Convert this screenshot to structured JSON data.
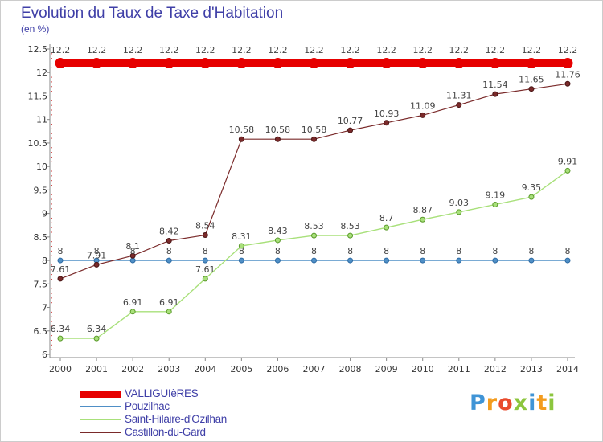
{
  "title": "Evolution du Taux de Taxe d'Habitation",
  "subtitle": "(en %)",
  "logo": {
    "text": "Proxiti",
    "letters": [
      "P",
      "r",
      "o",
      "x",
      "i",
      "t",
      "i"
    ],
    "colors": [
      "#3f94d6",
      "#f39c1e",
      "#e94b2d",
      "#8cc63e",
      "#3f94d6",
      "#f39c1e",
      "#8cc63e"
    ]
  },
  "chart_data": {
    "type": "line",
    "title": "Evolution du Taux de Taxe d'Habitation",
    "xlabel": "",
    "ylabel": "(en %)",
    "x": [
      "2000",
      "2001",
      "2002",
      "2003",
      "2004",
      "2005",
      "2006",
      "2007",
      "2008",
      "2009",
      "2010",
      "2011",
      "2012",
      "2013",
      "2014"
    ],
    "ylim": [
      6,
      12.5
    ],
    "yticks": [
      "6",
      "6.5",
      "7",
      "7.5",
      "8",
      "8.5",
      "9",
      "9.5",
      "10",
      "10.5",
      "11",
      "11.5",
      "12",
      "12.5"
    ],
    "grid": false,
    "legend_position": "bottom-left",
    "series": [
      {
        "name": "VALLIGUIèRES",
        "color": "#e60000",
        "values": [
          12.2,
          12.2,
          12.2,
          12.2,
          12.2,
          12.2,
          12.2,
          12.2,
          12.2,
          12.2,
          12.2,
          12.2,
          12.2,
          12.2,
          12.2
        ],
        "labels": [
          "12.2",
          "12.2",
          "12.2",
          "12.2",
          "12.2",
          "12.2",
          "12.2",
          "12.2",
          "12.2",
          "12.2",
          "12.2",
          "12.2",
          "12.2",
          "12.2",
          "12.2"
        ]
      },
      {
        "name": "Pouzilhac",
        "color": "#4f8fc6",
        "values": [
          8,
          8,
          8,
          8,
          8,
          8,
          8,
          8,
          8,
          8,
          8,
          8,
          8,
          8,
          8
        ],
        "labels": [
          "8",
          "8",
          "8",
          "8",
          "8",
          "8",
          "8",
          "8",
          "8",
          "8",
          "8",
          "8",
          "8",
          "8",
          "8"
        ]
      },
      {
        "name": "Saint-Hilaire-d'Ozilhan",
        "color": "#a8e07a",
        "values": [
          6.34,
          6.34,
          6.91,
          6.91,
          7.61,
          8.31,
          8.43,
          8.53,
          8.53,
          8.7,
          8.87,
          9.03,
          9.19,
          9.35,
          9.91
        ],
        "labels": [
          "6.34",
          "6.34",
          "6.91",
          "6.91",
          "7.61",
          "8.31",
          "8.43",
          "8.53",
          "8.53",
          "8.7",
          "8.87",
          "9.03",
          "9.19",
          "9.35",
          "9.91"
        ]
      },
      {
        "name": "Castillon-du-Gard",
        "color": "#7a2a2a",
        "values": [
          7.61,
          7.91,
          8.1,
          8.42,
          8.54,
          10.58,
          10.58,
          10.58,
          10.77,
          10.93,
          11.09,
          11.31,
          11.54,
          11.65,
          11.76
        ],
        "labels": [
          "7.61",
          "7.91",
          "8.1",
          "8.42",
          "8.54",
          "10.58",
          "10.58",
          "10.58",
          "10.77",
          "10.93",
          "11.09",
          "11.31",
          "11.54",
          "11.65",
          "11.76"
        ]
      }
    ]
  }
}
